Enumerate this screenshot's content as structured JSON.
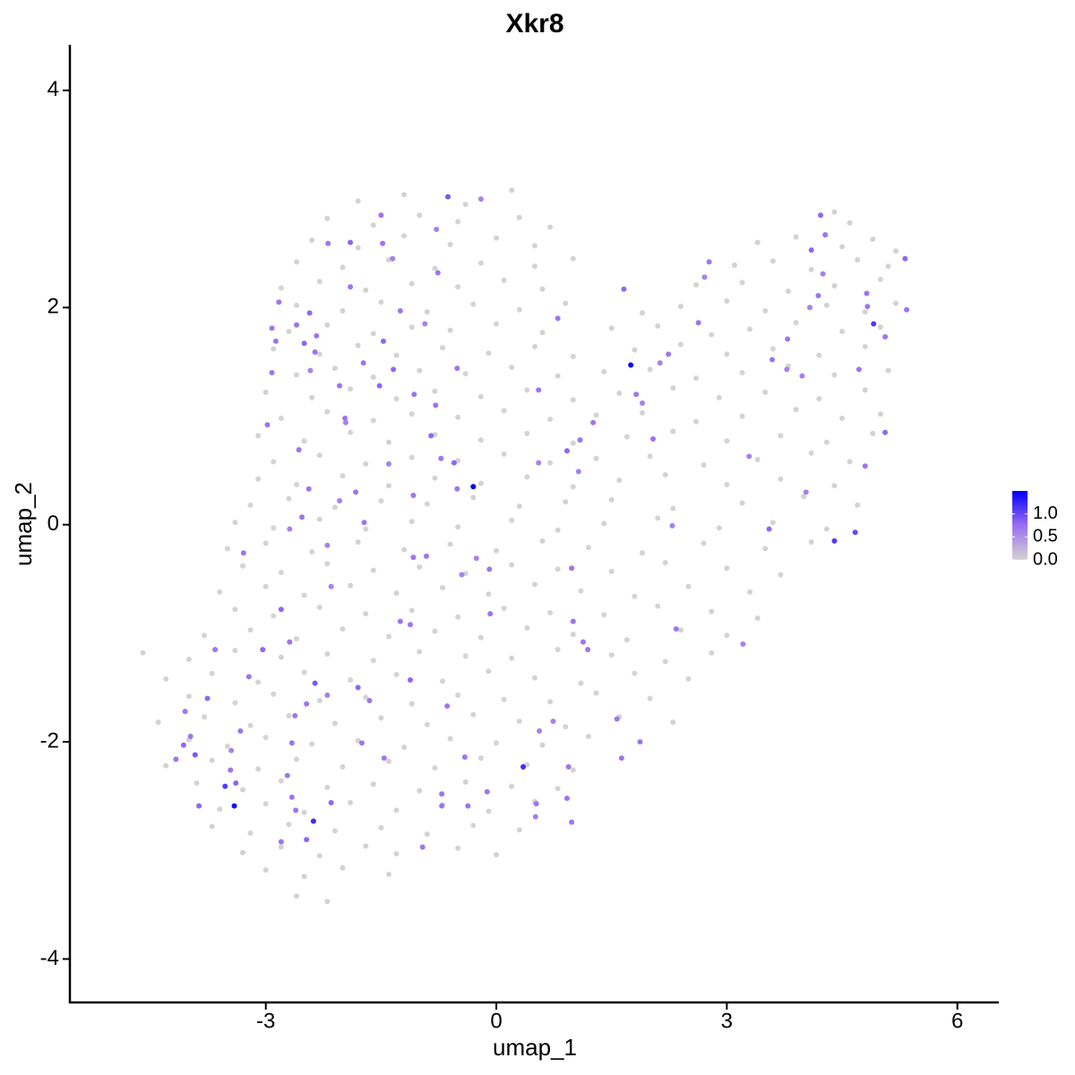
{
  "chart_data": {
    "type": "scatter",
    "title": "Xkr8",
    "x_label": "umap_1",
    "y_label": "umap_2",
    "xlim": [
      -5.55,
      6.54
    ],
    "ylim": [
      -4.4,
      4.42
    ],
    "xticks": [
      -3,
      0,
      3,
      6
    ],
    "yticks": [
      -4,
      -2,
      0,
      2,
      4
    ],
    "colors": [
      "#d3d3d3",
      "#9a6ef0",
      "#0000ff"
    ],
    "color_lim": [
      0,
      1.5
    ],
    "color_ticks": [
      {
        "value": 0,
        "label": "0.0"
      },
      {
        "value": 0.5,
        "label": "0.5"
      },
      {
        "value": 1,
        "label": "1.0"
      }
    ],
    "x": [
      -1.8,
      -1.2,
      -0.4,
      0.2,
      -2.2,
      -1.6,
      -1.0,
      -0.5,
      0.3,
      0.7,
      4.4,
      4.6,
      -2.4,
      -1.8,
      -1.2,
      -0.6,
      0.0,
      0.5,
      3.4,
      3.9,
      4.5,
      4.9,
      5.2,
      -2.6,
      -2.0,
      -1.4,
      -0.8,
      -0.2,
      0.5,
      1.0,
      3.1,
      3.6,
      4.1,
      4.7,
      5.1,
      -2.8,
      -2.3,
      -1.7,
      -1.1,
      -0.5,
      0.1,
      0.6,
      2.6,
      3.2,
      3.8,
      4.4,
      5.0,
      -2.6,
      -2.0,
      -1.5,
      -0.9,
      -0.3,
      0.3,
      0.9,
      1.9,
      2.4,
      3.0,
      3.5,
      4.3,
      4.8,
      5.2,
      -2.7,
      -2.2,
      -1.6,
      -1.1,
      -0.6,
      0.0,
      0.6,
      1.5,
      2.1,
      2.8,
      3.3,
      3.9,
      4.5,
      5.0,
      -2.9,
      -2.3,
      -1.8,
      -1.3,
      -0.7,
      -0.1,
      0.5,
      1.0,
      1.8,
      2.4,
      3.0,
      3.6,
      4.2,
      4.8,
      -2.6,
      -2.1,
      -1.6,
      -1.0,
      -0.4,
      0.2,
      0.8,
      1.4,
      2.0,
      2.6,
      3.2,
      3.8,
      4.4,
      5.1,
      -3.0,
      -2.4,
      -1.9,
      -1.3,
      -0.8,
      -0.2,
      0.4,
      1.0,
      1.6,
      2.3,
      2.9,
      3.5,
      4.2,
      4.8,
      -2.8,
      -2.2,
      -1.6,
      -1.1,
      -0.5,
      0.1,
      0.7,
      1.3,
      1.9,
      2.6,
      3.2,
      3.9,
      4.5,
      5.0,
      -3.1,
      -2.5,
      -1.9,
      -1.4,
      -0.8,
      -0.2,
      0.4,
      1.0,
      1.7,
      2.3,
      3.0,
      3.7,
      4.3,
      4.9,
      -2.9,
      -2.3,
      -1.7,
      -1.1,
      -0.5,
      0.1,
      0.7,
      1.3,
      2.0,
      2.7,
      3.4,
      4.1,
      4.6,
      -3.1,
      -2.6,
      -2.0,
      -1.4,
      -0.8,
      -0.2,
      0.4,
      1.0,
      1.6,
      2.2,
      3.0,
      3.7,
      4.4,
      -3.2,
      -2.7,
      -2.1,
      -1.5,
      -0.9,
      -0.3,
      0.3,
      0.9,
      1.5,
      2.3,
      3.2,
      4.0,
      4.7,
      -3.4,
      -2.9,
      -2.3,
      -1.7,
      -1.1,
      -0.5,
      0.2,
      0.8,
      1.4,
      2.1,
      2.9,
      3.6,
      4.3,
      -3.5,
      -3.0,
      -2.4,
      -1.8,
      -1.2,
      -0.6,
      0.0,
      0.6,
      1.2,
      1.9,
      2.7,
      3.5,
      4.1,
      -3.3,
      -2.8,
      -2.2,
      -1.6,
      -1.0,
      -0.4,
      0.2,
      0.8,
      1.5,
      2.2,
      3.0,
      3.7,
      -3.6,
      -3.0,
      -2.5,
      -1.9,
      -1.3,
      -0.7,
      -0.1,
      0.5,
      1.1,
      1.8,
      2.5,
      3.3,
      -3.4,
      -2.9,
      -2.3,
      -1.7,
      -1.1,
      -0.5,
      0.1,
      0.7,
      1.4,
      2.1,
      2.8,
      3.4,
      -3.8,
      -3.2,
      -2.6,
      -2.0,
      -1.4,
      -0.8,
      -0.2,
      0.4,
      1.0,
      1.7,
      2.4,
      3.0,
      -4.6,
      -4.0,
      -3.4,
      -2.8,
      -2.2,
      -1.6,
      -1.0,
      -0.4,
      0.2,
      0.8,
      1.5,
      2.2,
      2.8,
      -4.3,
      -3.7,
      -3.1,
      -2.5,
      -1.9,
      -1.3,
      -0.7,
      -0.1,
      0.5,
      1.1,
      1.8,
      2.5,
      -4.0,
      -3.4,
      -2.9,
      -2.3,
      -1.7,
      -1.1,
      -0.5,
      0.1,
      0.7,
      1.3,
      2.0,
      -4.4,
      -3.8,
      -3.2,
      -2.7,
      -2.1,
      -1.5,
      -0.9,
      -0.3,
      0.3,
      0.9,
      1.6,
      2.3,
      -4.0,
      -3.5,
      -3.0,
      -2.4,
      -1.8,
      -1.2,
      -0.6,
      0.0,
      0.6,
      1.2,
      -4.3,
      -3.7,
      -3.1,
      -2.6,
      -2.0,
      -1.4,
      -0.8,
      -0.2,
      0.4,
      1.0,
      -3.9,
      -3.3,
      -2.8,
      -2.2,
      -1.6,
      -1.0,
      -0.4,
      0.2,
      0.8,
      -3.6,
      -3.0,
      -2.5,
      -1.9,
      -1.3,
      -0.7,
      -0.1,
      0.5,
      -3.7,
      -3.2,
      -2.7,
      -2.1,
      -1.5,
      -0.9,
      -0.3,
      0.3,
      -3.3,
      -2.8,
      -2.3,
      -1.7,
      -1.3,
      -0.5,
      0.0,
      -3.0,
      -2.5,
      -2.0,
      -1.4,
      -2.6,
      -2.2,
      -0.63,
      -0.2,
      -1.5,
      -1.9,
      -2.19,
      -1.48,
      -1.35,
      -0.78,
      -0.76,
      -1.9,
      -2.83,
      -2.43,
      -2.6,
      -2.92,
      -2.87,
      -2.5,
      -2.34,
      -1.25,
      -0.93,
      -1.47,
      -2.36,
      -1.73,
      -1.34,
      -0.51,
      -2.92,
      -2.42,
      -2.04,
      -1.52,
      -1.07,
      -1.97,
      -1.96,
      -2.98,
      -0.79,
      -0.85,
      -2.57,
      -0.72,
      -0.55,
      -0.3,
      -0.51,
      -1.4,
      -1.08,
      -2.44,
      -2.04,
      -1.83,
      -2.53,
      -2.69,
      -1.72,
      -3.29,
      -2.2,
      -1.08,
      -0.91,
      -0.45,
      -0.09,
      -0.26,
      -2.15,
      -2.8,
      -2.69,
      -3.04,
      -1.25,
      -1.12,
      -0.08,
      -3.66,
      -3.22,
      -2.36,
      -2.47,
      -2.62,
      -2.2,
      -1.8,
      -1.65,
      -1.12,
      -0.64,
      -3.76,
      -4.05,
      -3.98,
      -4.07,
      -3.92,
      -4.17,
      -3.45,
      -3.33,
      -2.66,
      -1.75,
      -1.46,
      -0.41,
      0.35,
      -3.46,
      -3.39,
      -3.53,
      -2.72,
      -2.66,
      -2.61,
      -3.41,
      -3.87,
      -2.38,
      -2.47,
      -2.8,
      -2.15,
      -0.71,
      -0.71,
      -0.37,
      -0.12,
      0.52,
      0.51,
      0.92,
      0.98,
      -0.96,
      1.57,
      1.87,
      1.63,
      0.74,
      0.94,
      0.56,
      1.0,
      1.13,
      1.19,
      0.98,
      0.55,
      0.92,
      1.09,
      1.07,
      1.26,
      0.55,
      0.8,
      1.66,
      1.75,
      1.82,
      1.9,
      2.04,
      2.24,
      2.13,
      2.63,
      2.71,
      2.77,
      3.59,
      3.79,
      3.78,
      3.29,
      3.55,
      2.29,
      2.34,
      3.21,
      4.03,
      4.4,
      4.67,
      3.98,
      4.08,
      4.19,
      4.25,
      4.1,
      4.28,
      4.22,
      4.82,
      4.91,
      4.83,
      5.06,
      5.32,
      5.34,
      5.06,
      4.8,
      4.72
    ],
    "y": [
      2.98,
      3.04,
      2.95,
      3.08,
      2.82,
      2.76,
      2.85,
      2.79,
      2.83,
      2.74,
      2.88,
      2.78,
      2.62,
      2.55,
      2.66,
      2.58,
      2.64,
      2.57,
      2.6,
      2.65,
      2.56,
      2.63,
      2.52,
      2.42,
      2.37,
      2.44,
      2.36,
      2.41,
      2.38,
      2.45,
      2.39,
      2.43,
      2.35,
      2.44,
      2.38,
      2.18,
      2.24,
      2.16,
      2.22,
      2.19,
      2.25,
      2.17,
      2.21,
      2.23,
      2.15,
      2.2,
      2.26,
      2.02,
      1.97,
      2.05,
      1.96,
      2.03,
      1.98,
      2.04,
      1.95,
      2.01,
      2.06,
      1.97,
      2.02,
      1.96,
      2.04,
      1.78,
      1.84,
      1.76,
      1.82,
      1.79,
      1.85,
      1.77,
      1.81,
      1.83,
      1.75,
      1.8,
      1.86,
      1.78,
      1.82,
      1.62,
      1.57,
      1.65,
      1.56,
      1.63,
      1.58,
      1.64,
      1.55,
      1.61,
      1.66,
      1.57,
      1.62,
      1.56,
      1.64,
      1.38,
      1.44,
      1.36,
      1.42,
      1.39,
      1.45,
      1.37,
      1.41,
      1.43,
      1.35,
      1.4,
      1.46,
      1.38,
      1.42,
      1.22,
      1.17,
      1.25,
      1.16,
      1.23,
      1.18,
      1.24,
      1.15,
      1.21,
      1.26,
      1.17,
      1.22,
      1.16,
      1.24,
      0.98,
      1.04,
      0.96,
      1.02,
      0.99,
      1.05,
      0.97,
      1.01,
      1.03,
      0.95,
      1.0,
      1.06,
      0.98,
      1.02,
      0.82,
      0.77,
      0.85,
      0.76,
      0.83,
      0.78,
      0.84,
      0.75,
      0.81,
      0.86,
      0.77,
      0.82,
      0.76,
      0.84,
      0.58,
      0.64,
      0.56,
      0.62,
      0.59,
      0.65,
      0.57,
      0.61,
      0.63,
      0.55,
      0.6,
      0.66,
      0.58,
      0.42,
      0.37,
      0.45,
      0.36,
      0.43,
      0.38,
      0.44,
      0.35,
      0.41,
      0.46,
      0.37,
      0.42,
      0.36,
      0.18,
      0.24,
      0.16,
      0.22,
      0.19,
      0.25,
      0.17,
      0.21,
      0.23,
      0.15,
      0.2,
      0.26,
      0.18,
      0.02,
      -0.03,
      0.05,
      -0.04,
      0.03,
      -0.02,
      0.04,
      -0.05,
      0.01,
      0.06,
      -0.03,
      0.02,
      -0.04,
      -0.22,
      -0.17,
      -0.25,
      -0.16,
      -0.23,
      -0.18,
      -0.24,
      -0.15,
      -0.21,
      -0.26,
      -0.17,
      -0.22,
      -0.16,
      -0.38,
      -0.44,
      -0.36,
      -0.42,
      -0.39,
      -0.45,
      -0.37,
      -0.41,
      -0.43,
      -0.35,
      -0.4,
      -0.46,
      -0.62,
      -0.57,
      -0.65,
      -0.56,
      -0.63,
      -0.58,
      -0.64,
      -0.55,
      -0.61,
      -0.66,
      -0.57,
      -0.62,
      -0.78,
      -0.84,
      -0.76,
      -0.82,
      -0.79,
      -0.85,
      -0.77,
      -0.81,
      -0.83,
      -0.75,
      -0.8,
      -0.86,
      -1.02,
      -0.97,
      -1.05,
      -0.96,
      -1.03,
      -0.98,
      -1.04,
      -0.95,
      -1.01,
      -1.06,
      -0.97,
      -1.02,
      -1.18,
      -1.24,
      -1.16,
      -1.22,
      -1.19,
      -1.25,
      -1.17,
      -1.21,
      -1.23,
      -1.15,
      -1.2,
      -1.26,
      -1.18,
      -1.42,
      -1.37,
      -1.45,
      -1.36,
      -1.43,
      -1.38,
      -1.44,
      -1.35,
      -1.41,
      -1.46,
      -1.37,
      -1.42,
      -1.58,
      -1.64,
      -1.56,
      -1.62,
      -1.59,
      -1.65,
      -1.57,
      -1.61,
      -1.63,
      -1.55,
      -1.6,
      -1.82,
      -1.77,
      -1.85,
      -1.76,
      -1.83,
      -1.78,
      -1.84,
      -1.75,
      -1.81,
      -1.86,
      -1.77,
      -1.82,
      -1.98,
      -2.04,
      -1.96,
      -2.02,
      -1.99,
      -2.05,
      -1.97,
      -2.01,
      -2.03,
      -1.95,
      -2.22,
      -2.17,
      -2.25,
      -2.16,
      -2.23,
      -2.18,
      -2.24,
      -2.15,
      -2.21,
      -2.26,
      -2.38,
      -2.44,
      -2.36,
      -2.42,
      -2.39,
      -2.45,
      -2.37,
      -2.41,
      -2.43,
      -2.62,
      -2.57,
      -2.65,
      -2.56,
      -2.63,
      -2.58,
      -2.64,
      -2.55,
      -2.78,
      -2.84,
      -2.76,
      -2.82,
      -2.79,
      -2.85,
      -2.77,
      -2.81,
      -3.02,
      -2.97,
      -3.05,
      -2.96,
      -3.03,
      -2.98,
      -3.04,
      -3.18,
      -3.24,
      -3.16,
      -3.22,
      -3.42,
      -3.47,
      3.02,
      3.0,
      2.85,
      2.6,
      2.59,
      2.59,
      2.45,
      2.72,
      2.32,
      2.19,
      2.05,
      1.95,
      1.84,
      1.81,
      1.69,
      1.67,
      1.74,
      1.97,
      1.85,
      1.69,
      1.59,
      1.49,
      1.43,
      1.44,
      1.4,
      1.42,
      1.28,
      1.28,
      1.2,
      0.98,
      0.94,
      0.92,
      1.1,
      0.82,
      0.69,
      0.61,
      0.57,
      0.35,
      0.33,
      0.56,
      0.27,
      0.33,
      0.22,
      0.3,
      0.07,
      -0.04,
      0.02,
      -0.26,
      -0.19,
      -0.3,
      -0.29,
      -0.46,
      -0.41,
      -0.31,
      -0.57,
      -0.78,
      -1.08,
      -1.15,
      -0.89,
      -0.92,
      -0.82,
      -1.15,
      -1.4,
      -1.46,
      -1.65,
      -1.76,
      -1.57,
      -1.5,
      -1.62,
      -1.43,
      -1.67,
      -1.6,
      -1.72,
      -1.95,
      -2.03,
      -2.12,
      -2.16,
      -2.08,
      -1.9,
      -2.01,
      -2.01,
      -2.15,
      -2.14,
      -2.23,
      -2.26,
      -2.38,
      -2.41,
      -2.31,
      -2.51,
      -2.63,
      -2.59,
      -2.59,
      -2.73,
      -2.9,
      -2.92,
      -2.56,
      -2.48,
      -2.59,
      -2.59,
      -2.46,
      -2.57,
      -2.69,
      -2.52,
      -2.74,
      -2.97,
      -1.79,
      -2.0,
      -2.15,
      -1.81,
      -2.23,
      -1.9,
      -0.89,
      -1.08,
      -1.15,
      -0.4,
      1.24,
      0.68,
      0.78,
      0.49,
      0.94,
      0.57,
      1.9,
      2.17,
      1.47,
      1.2,
      1.12,
      0.79,
      1.57,
      1.49,
      1.86,
      2.28,
      2.42,
      1.52,
      1.71,
      1.43,
      0.63,
      -0.04,
      -0.01,
      -0.96,
      -1.1,
      0.3,
      -0.15,
      -0.07,
      1.37,
      2.0,
      2.11,
      2.31,
      2.53,
      2.67,
      2.85,
      2.13,
      1.85,
      2.01,
      1.73,
      2.45,
      1.98,
      0.85,
      0.54,
      1.43
    ],
    "values": [
      0,
      0,
      0,
      0,
      0,
      0,
      0,
      0,
      0,
      0,
      0,
      0,
      0,
      0,
      0,
      0,
      0,
      0,
      0,
      0,
      0,
      0,
      0,
      0,
      0,
      0,
      0,
      0,
      0,
      0,
      0,
      0,
      0,
      0,
      0,
      0,
      0,
      0,
      0,
      0,
      0,
      0,
      0,
      0,
      0,
      0,
      0,
      0,
      0,
      0,
      0,
      0,
      0,
      0,
      0,
      0,
      0,
      0,
      0,
      0,
      0,
      0,
      0,
      0,
      0,
      0,
      0,
      0,
      0,
      0,
      0,
      0,
      0,
      0,
      0,
      0,
      0,
      0,
      0,
      0,
      0,
      0,
      0,
      0,
      0,
      0,
      0,
      0,
      0,
      0,
      0,
      0,
      0,
      0,
      0,
      0,
      0,
      0,
      0,
      0,
      0,
      0,
      0,
      0,
      0,
      0,
      0,
      0,
      0,
      0,
      0,
      0,
      0,
      0,
      0,
      0,
      0,
      0,
      0,
      0,
      0,
      0,
      0,
      0,
      0,
      0,
      0,
      0,
      0,
      0,
      0,
      0,
      0,
      0,
      0,
      0,
      0,
      0,
      0,
      0,
      0,
      0,
      0,
      0,
      0,
      0,
      0,
      0,
      0,
      0,
      0,
      0,
      0,
      0,
      0,
      0,
      0,
      0,
      0,
      0,
      0,
      0,
      0,
      0,
      0,
      0,
      0,
      0,
      0,
      0,
      0,
      0,
      0,
      0,
      0,
      0,
      0,
      0,
      0,
      0,
      0,
      0,
      0,
      0,
      0,
      0,
      0,
      0,
      0,
      0,
      0,
      0,
      0,
      0,
      0,
      0,
      0,
      0,
      0,
      0,
      0,
      0,
      0,
      0,
      0,
      0,
      0,
      0,
      0,
      0,
      0,
      0,
      0,
      0,
      0,
      0,
      0,
      0,
      0,
      0,
      0,
      0,
      0,
      0,
      0,
      0,
      0,
      0,
      0,
      0,
      0,
      0,
      0,
      0,
      0,
      0,
      0,
      0,
      0,
      0,
      0,
      0,
      0,
      0,
      0,
      0,
      0,
      0,
      0,
      0,
      0,
      0,
      0,
      0,
      0,
      0,
      0,
      0,
      0,
      0,
      0,
      0,
      0,
      0,
      0,
      0,
      0,
      0,
      0,
      0,
      0,
      0,
      0,
      0,
      0,
      0,
      0,
      0,
      0,
      0,
      0,
      0,
      0,
      0,
      0,
      0,
      0,
      0,
      0,
      0,
      0,
      0,
      0,
      0,
      0,
      0,
      0,
      0,
      0,
      0,
      0,
      0,
      0,
      0,
      0,
      0,
      0,
      0,
      0,
      0,
      0,
      0,
      0,
      0,
      0,
      0,
      0,
      0,
      0,
      0,
      0,
      0,
      0,
      0,
      0,
      0,
      0,
      0,
      0,
      0,
      0,
      0,
      0,
      0,
      0,
      0,
      0,
      0,
      0,
      0,
      0,
      0,
      0,
      0,
      0,
      0,
      0,
      0,
      0,
      0,
      0,
      0,
      0,
      0,
      0,
      0,
      0,
      0,
      0,
      0,
      0,
      0,
      0,
      0,
      0.9,
      0.6,
      0.7,
      0.8,
      0.7,
      0.7,
      0.6,
      0.6,
      0.7,
      0.7,
      0.7,
      0.8,
      0.7,
      0.7,
      0.7,
      0.8,
      0.7,
      0.7,
      0.6,
      0.8,
      0.7,
      0.7,
      0.8,
      0.7,
      0.7,
      0.6,
      0.7,
      0.8,
      0.7,
      0.7,
      0.6,
      0.7,
      0.7,
      0.8,
      0.7,
      0.7,
      0.8,
      1.5,
      0.7,
      0.6,
      0.7,
      0.7,
      0.6,
      0.7,
      0.7,
      0.6,
      0.7,
      0.7,
      0.6,
      0.7,
      0.7,
      0.6,
      0.7,
      0.6,
      0.6,
      0.8,
      0.7,
      0.8,
      0.7,
      0.7,
      0.7,
      0.7,
      0.7,
      0.9,
      0.7,
      0.7,
      0.6,
      0.8,
      0.7,
      0.8,
      0.7,
      0.8,
      0.7,
      0.7,
      0.8,
      0.9,
      0.7,
      0.6,
      0.7,
      0.7,
      0.7,
      0.7,
      0.7,
      1.2,
      0.7,
      0.8,
      1.1,
      0.7,
      0.7,
      0.7,
      1.4,
      0.8,
      1.2,
      0.8,
      0.7,
      0.8,
      0.7,
      0.7,
      0.7,
      0.7,
      0.7,
      0.6,
      0.7,
      0.7,
      0.7,
      0.7,
      0.7,
      0.7,
      0.6,
      0.7,
      0.6,
      0.7,
      0.7,
      0.7,
      0.7,
      0.7,
      0.8,
      0.7,
      0.6,
      0.7,
      0.6,
      0.7,
      0.8,
      1.45,
      0.7,
      0.6,
      0.7,
      0.7,
      0.6,
      0.7,
      0.6,
      0.7,
      0.7,
      0.7,
      0.6,
      0.6,
      0.8,
      0.6,
      0.7,
      0.6,
      0.6,
      1.1,
      1.0,
      0.6,
      0.6,
      0.7,
      0.6,
      0.8,
      0.7,
      0.8,
      0.7,
      1.1,
      0.7,
      0.7,
      0.8,
      0.7,
      0.8,
      0.7,
      0.7
    ]
  }
}
